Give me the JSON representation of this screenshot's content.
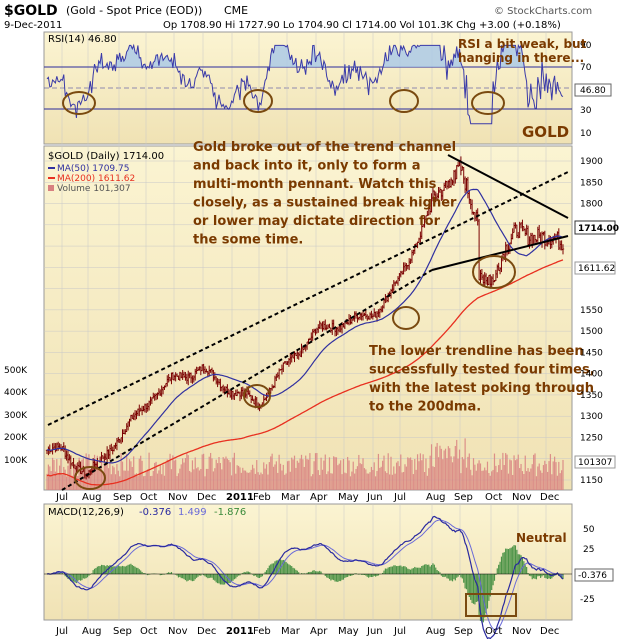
{
  "header": {
    "symbol": "$GOLD",
    "desc": "(Gold - Spot Price (EOD))",
    "exchange": "CME",
    "date": "9-Dec-2011",
    "ohlc": "Op 1708.90  Hi 1727.90  Lo 1704.90  Cl 1714.00  Vol 101.3K  Chg +3.00 (+0.18%)",
    "source": "© StockCharts.com"
  },
  "colors": {
    "bg": "#f8f0c8",
    "bgGrad": "#f2e2b0",
    "priceBar": "#7a0000",
    "ma50": "#3030a0",
    "ma200": "#e83020",
    "volume": "#d88080",
    "rsiLine": "#3a3aa8",
    "rsiFill": "#a8c8e8",
    "macdLine": "#2a2aa0",
    "signal": "#6a6ad8",
    "hist": "#3a8a3a",
    "annot": "#7a3a00",
    "circle": "#7a4a10",
    "trend": "#000000",
    "grid": "#c8c8c8"
  },
  "panels": {
    "rsi": {
      "label": "RSI(14) 46.80",
      "value": "46.80",
      "ticks": [
        "90",
        "70",
        "50",
        "30",
        "10"
      ],
      "note_line1": "RSI a bit weak, but",
      "note_line2": "hanging in there..."
    },
    "price": {
      "legend_title": "$GOLD (Daily) 1714.00",
      "legend_ma50": "MA(50) 1709.75",
      "legend_ma200": "MA(200) 1611.62",
      "legend_vol": "Volume 101,307",
      "gold_label": "GOLD",
      "last_price": "1714.00",
      "ma200_tag": "1611.62",
      "vol_tag": "101307",
      "ticks": [
        "1900",
        "1850",
        "1800",
        "1750",
        "1700",
        "1650",
        "1600",
        "1550",
        "1500",
        "1450",
        "1400",
        "1350",
        "1300",
        "1250",
        "1200",
        "1150"
      ],
      "vol_ticks": [
        "500K",
        "400K",
        "300K",
        "200K",
        "100K"
      ],
      "note1": [
        "Gold broke out of the trend channel",
        "and back into it, only to form a",
        "multi-month pennant. Watch this",
        "closely, as a sustained break higher",
        "or lower may dictate direction for",
        "the some time."
      ],
      "note2": [
        "The lower trendline has been",
        "successfully tested four times,",
        "with the latest poking through",
        "to the 200dma."
      ]
    },
    "macd": {
      "label_prefix": "MACD(12,26,9)",
      "macd_val": "-0.376",
      "sig_val": "1.499",
      "hist_val": "-1.876",
      "tag": "-0.376",
      "ticks": [
        "50",
        "25",
        "0",
        "-25"
      ],
      "note": "Neutral"
    }
  },
  "xaxis": {
    "months": [
      "Jul",
      "Aug",
      "Sep",
      "Oct",
      "Nov",
      "Dec",
      "2011",
      "Feb",
      "Mar",
      "Apr",
      "May",
      "Jun",
      "Jul",
      "Aug",
      "Sep",
      "Oct",
      "Nov",
      "Dec"
    ]
  },
  "chart_data": {
    "type": "line",
    "title": "$GOLD (Gold - Spot Price (EOD)) CME",
    "y_range": [
      1140,
      1930
    ],
    "x": [
      "Jul 2010",
      "Aug 2010",
      "Sep 2010",
      "Oct 2010",
      "Nov 2010",
      "Dec 2010",
      "Jan 2011",
      "Feb 2011",
      "Mar 2011",
      "Apr 2011",
      "May 2011",
      "Jun 2011",
      "Jul 2011",
      "Aug 2011",
      "Sep 2011",
      "Oct 2011",
      "Nov 2011",
      "Dec 2011"
    ],
    "price_anchors": [
      1220,
      1160,
      1250,
      1330,
      1390,
      1410,
      1360,
      1330,
      1420,
      1500,
      1520,
      1540,
      1620,
      1800,
      1890,
      1630,
      1740,
      1714
    ],
    "series": [
      {
        "name": "$GOLD (Daily)",
        "last": 1714.0
      },
      {
        "name": "MA(50)",
        "last": 1709.75
      },
      {
        "name": "MA(200)",
        "last": 1611.62
      },
      {
        "name": "Volume",
        "last": 101307
      }
    ],
    "rsi": {
      "name": "RSI(14)",
      "last": 46.8,
      "range": [
        0,
        100
      ]
    },
    "macd": {
      "name": "MACD(12,26,9)",
      "macd": -0.376,
      "signal": 1.499,
      "histogram": -1.876,
      "range": [
        -40,
        70
      ]
    }
  }
}
